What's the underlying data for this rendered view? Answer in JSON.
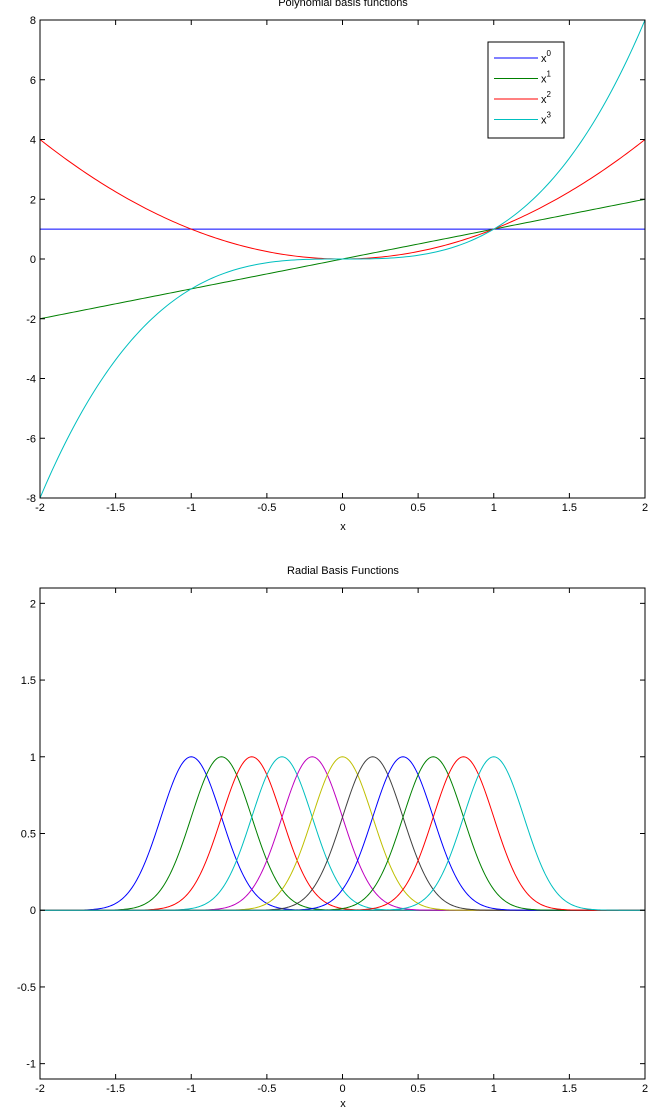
{
  "chart_data": [
    {
      "type": "line",
      "title": "Polynomial basis functions",
      "xlabel": "x",
      "ylabel": "",
      "xlim": [
        -2,
        2
      ],
      "ylim": [
        -8,
        8
      ],
      "x_ticks": [
        "-2",
        "-1.5",
        "-1",
        "-0.5",
        "0",
        "0.5",
        "1",
        "1.5",
        "2"
      ],
      "x_tick_values": [
        -2,
        -1.5,
        -1,
        -0.5,
        0,
        0.5,
        1,
        1.5,
        2
      ],
      "y_ticks": [
        "-8",
        "-6",
        "-4",
        "-2",
        "0",
        "2",
        "4",
        "6",
        "8"
      ],
      "y_tick_values": [
        -8,
        -6,
        -4,
        -2,
        0,
        2,
        4,
        6,
        8
      ],
      "grid": false,
      "legend_position": "top-right",
      "x": [
        -2,
        -1.5,
        -1,
        -0.5,
        0,
        0.5,
        1,
        1.5,
        2
      ],
      "series": [
        {
          "name": "x",
          "sup": "0",
          "color": "#0000ff",
          "values": [
            1,
            1,
            1,
            1,
            1,
            1,
            1,
            1,
            1
          ]
        },
        {
          "name": "x",
          "sup": "1",
          "color": "#008000",
          "values": [
            -2,
            -1.5,
            -1,
            -0.5,
            0,
            0.5,
            1,
            1.5,
            2
          ]
        },
        {
          "name": "x",
          "sup": "2",
          "color": "#ff0000",
          "values": [
            4,
            2.25,
            1,
            0.25,
            0,
            0.25,
            1,
            2.25,
            4
          ]
        },
        {
          "name": "x",
          "sup": "3",
          "color": "#00bfbf",
          "values": [
            -8,
            -3.375,
            -1,
            -0.125,
            0,
            0.125,
            1,
            3.375,
            8
          ]
        }
      ]
    },
    {
      "type": "line",
      "title": "Radial Basis Functions",
      "xlabel": "x",
      "ylabel": "",
      "xlim": [
        -2,
        2
      ],
      "ylim": [
        -1.1,
        2.1
      ],
      "x_ticks": [
        "-2",
        "-1.5",
        "-1",
        "-0.5",
        "0",
        "0.5",
        "1",
        "1.5",
        "2"
      ],
      "x_tick_values": [
        -2,
        -1.5,
        -1,
        -0.5,
        0,
        0.5,
        1,
        1.5,
        2
      ],
      "y_ticks": [
        "-1",
        "-0.5",
        "0",
        "0.5",
        "1",
        "1.5",
        "2"
      ],
      "y_tick_values": [
        -1,
        -0.5,
        0,
        0.5,
        1,
        1.5,
        2
      ],
      "grid": false,
      "x": [
        -2,
        -1.8,
        -1.6,
        -1.4,
        -1.2,
        -1,
        -0.8,
        -0.6,
        -0.4,
        -0.2,
        0,
        0.2,
        0.4,
        0.6,
        0.8,
        1,
        1.2,
        1.4,
        1.6,
        1.8,
        2
      ],
      "series": [
        {
          "center": -1.0,
          "color": "#0000ff",
          "values": [
            0,
            0,
            0.04,
            0.29,
            0.78,
            1,
            0.78,
            0.29,
            0.04,
            0,
            0,
            0,
            0,
            0,
            0,
            0,
            0,
            0,
            0,
            0,
            0
          ]
        },
        {
          "center": -0.8,
          "color": "#008000",
          "values": [
            0,
            0,
            0,
            0.04,
            0.29,
            0.78,
            1,
            0.78,
            0.29,
            0.04,
            0,
            0,
            0,
            0,
            0,
            0,
            0,
            0,
            0,
            0,
            0
          ]
        },
        {
          "center": -0.6,
          "color": "#ff0000",
          "values": [
            0,
            0,
            0,
            0,
            0.04,
            0.29,
            0.78,
            1,
            0.78,
            0.29,
            0.04,
            0,
            0,
            0,
            0,
            0,
            0,
            0,
            0,
            0,
            0
          ]
        },
        {
          "center": -0.4,
          "color": "#00bfbf",
          "values": [
            0,
            0,
            0,
            0,
            0,
            0.04,
            0.29,
            0.78,
            1,
            0.78,
            0.29,
            0.04,
            0,
            0,
            0,
            0,
            0,
            0,
            0,
            0,
            0
          ]
        },
        {
          "center": -0.2,
          "color": "#bf00bf",
          "values": [
            0,
            0,
            0,
            0,
            0,
            0,
            0.04,
            0.29,
            0.78,
            1,
            0.78,
            0.29,
            0.04,
            0,
            0,
            0,
            0,
            0,
            0,
            0,
            0
          ]
        },
        {
          "center": 0.0,
          "color": "#bfbf00",
          "values": [
            0,
            0,
            0,
            0,
            0,
            0,
            0,
            0.04,
            0.29,
            0.78,
            1,
            0.78,
            0.29,
            0.04,
            0,
            0,
            0,
            0,
            0,
            0,
            0
          ]
        },
        {
          "center": 0.2,
          "color": "#404040",
          "values": [
            0,
            0,
            0,
            0,
            0,
            0,
            0,
            0,
            0.04,
            0.29,
            0.78,
            1,
            0.78,
            0.29,
            0.04,
            0,
            0,
            0,
            0,
            0,
            0
          ]
        },
        {
          "center": 0.4,
          "color": "#0000ff",
          "values": [
            0,
            0,
            0,
            0,
            0,
            0,
            0,
            0,
            0,
            0.04,
            0.29,
            0.78,
            1,
            0.78,
            0.29,
            0.04,
            0,
            0,
            0,
            0,
            0
          ]
        },
        {
          "center": 0.6,
          "color": "#008000",
          "values": [
            0,
            0,
            0,
            0,
            0,
            0,
            0,
            0,
            0,
            0,
            0.04,
            0.29,
            0.78,
            1,
            0.78,
            0.29,
            0.04,
            0,
            0,
            0,
            0
          ]
        },
        {
          "center": 0.8,
          "color": "#ff0000",
          "values": [
            0,
            0,
            0,
            0,
            0,
            0,
            0,
            0,
            0,
            0,
            0,
            0.04,
            0.29,
            0.78,
            1,
            0.78,
            0.29,
            0.04,
            0,
            0,
            0
          ]
        },
        {
          "center": 1.0,
          "color": "#00bfbf",
          "values": [
            0,
            0,
            0,
            0,
            0,
            0,
            0,
            0,
            0,
            0,
            0,
            0,
            0.04,
            0.29,
            0.78,
            1,
            0.78,
            0.29,
            0.04,
            0,
            0
          ]
        }
      ]
    }
  ]
}
